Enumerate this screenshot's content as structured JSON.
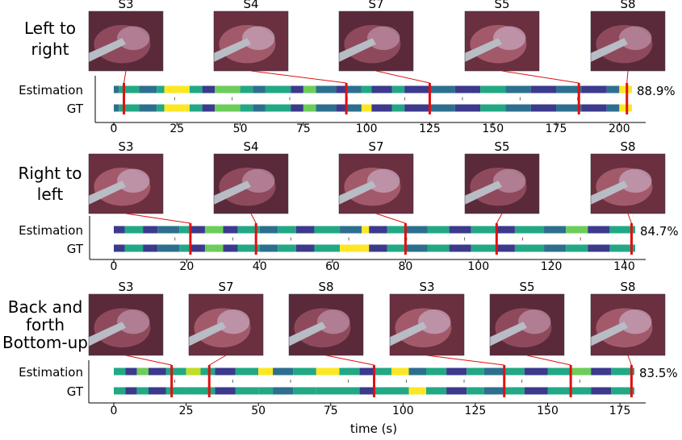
{
  "xlabel": "time (s)",
  "palette": {
    "viridis_c0": "#3b3a8c",
    "viridis_c1": "#2d6f8e",
    "viridis_c2": "#22a884",
    "viridis_c3": "#6ccd5a",
    "viridis_c4": "#bddf26",
    "viridis_c5": "#fde725",
    "marker": "#e01010"
  },
  "chart_data": [
    {
      "type": "heatmap",
      "title": "Left to right",
      "row_labels": [
        "Estimation",
        "GT"
      ],
      "accuracy": "88.9%",
      "xlim": [
        0,
        205
      ],
      "xticks": [
        0,
        25,
        50,
        75,
        100,
        125,
        150,
        175,
        200
      ],
      "frames": [
        {
          "label": "S3",
          "time": 4
        },
        {
          "label": "S4",
          "time": 92
        },
        {
          "label": "S7",
          "time": 125
        },
        {
          "label": "S5",
          "time": 184
        },
        {
          "label": "S8",
          "time": 203
        }
      ],
      "bands": {
        "Estimation": [
          [
            0,
            2,
            "1"
          ],
          [
            2,
            10,
            "2"
          ],
          [
            10,
            17,
            "1"
          ],
          [
            17,
            20,
            "2"
          ],
          [
            20,
            30,
            "5"
          ],
          [
            30,
            35,
            "2"
          ],
          [
            35,
            40,
            "0"
          ],
          [
            40,
            50,
            "3"
          ],
          [
            50,
            55,
            "2"
          ],
          [
            55,
            60,
            "1"
          ],
          [
            60,
            70,
            "2"
          ],
          [
            70,
            75,
            "0"
          ],
          [
            75,
            80,
            "3"
          ],
          [
            80,
            88,
            "1"
          ],
          [
            88,
            92,
            "0"
          ],
          [
            92,
            98,
            "1"
          ],
          [
            98,
            102,
            "2"
          ],
          [
            102,
            110,
            "0"
          ],
          [
            110,
            115,
            "2"
          ],
          [
            115,
            125,
            "0"
          ],
          [
            125,
            135,
            "1"
          ],
          [
            135,
            145,
            "0"
          ],
          [
            145,
            155,
            "2"
          ],
          [
            155,
            165,
            "1"
          ],
          [
            165,
            175,
            "0"
          ],
          [
            175,
            185,
            "1"
          ],
          [
            185,
            195,
            "0"
          ],
          [
            195,
            200,
            "1"
          ],
          [
            200,
            203,
            "5"
          ],
          [
            203,
            205,
            "5"
          ]
        ],
        "GT": [
          [
            0,
            2,
            "1"
          ],
          [
            2,
            10,
            "2"
          ],
          [
            10,
            17,
            "1"
          ],
          [
            17,
            20,
            "2"
          ],
          [
            20,
            30,
            "5"
          ],
          [
            30,
            35,
            "2"
          ],
          [
            35,
            40,
            "0"
          ],
          [
            40,
            50,
            "3"
          ],
          [
            50,
            55,
            "2"
          ],
          [
            55,
            60,
            "1"
          ],
          [
            60,
            70,
            "2"
          ],
          [
            70,
            75,
            "0"
          ],
          [
            75,
            80,
            "3"
          ],
          [
            80,
            88,
            "1"
          ],
          [
            88,
            92,
            "0"
          ],
          [
            92,
            98,
            "1"
          ],
          [
            98,
            102,
            "5"
          ],
          [
            102,
            110,
            "0"
          ],
          [
            110,
            115,
            "2"
          ],
          [
            115,
            125,
            "0"
          ],
          [
            125,
            135,
            "1"
          ],
          [
            135,
            145,
            "0"
          ],
          [
            145,
            155,
            "2"
          ],
          [
            155,
            165,
            "1"
          ],
          [
            165,
            175,
            "0"
          ],
          [
            175,
            185,
            "1"
          ],
          [
            185,
            195,
            "0"
          ],
          [
            195,
            200,
            "1"
          ],
          [
            200,
            203,
            "5"
          ],
          [
            203,
            205,
            "5"
          ]
        ]
      }
    },
    {
      "type": "heatmap",
      "title": "Right to left",
      "row_labels": [
        "Estimation",
        "GT"
      ],
      "accuracy": "84.7%",
      "xlim": [
        0,
        143
      ],
      "xticks": [
        0,
        20,
        40,
        60,
        80,
        100,
        120,
        140
      ],
      "frames": [
        {
          "label": "S3",
          "time": 21
        },
        {
          "label": "S4",
          "time": 39
        },
        {
          "label": "S7",
          "time": 80
        },
        {
          "label": "S5",
          "time": 105
        },
        {
          "label": "S8",
          "time": 142
        }
      ],
      "bands": {
        "Estimation": [
          [
            0,
            3,
            "0"
          ],
          [
            3,
            8,
            "2"
          ],
          [
            8,
            12,
            "0"
          ],
          [
            12,
            18,
            "1"
          ],
          [
            18,
            21,
            "2"
          ],
          [
            21,
            25,
            "0"
          ],
          [
            25,
            30,
            "3"
          ],
          [
            30,
            34,
            "0"
          ],
          [
            34,
            40,
            "2"
          ],
          [
            40,
            45,
            "1"
          ],
          [
            45,
            50,
            "2"
          ],
          [
            50,
            55,
            "0"
          ],
          [
            55,
            62,
            "2"
          ],
          [
            62,
            68,
            "1"
          ],
          [
            68,
            70,
            "5"
          ],
          [
            70,
            75,
            "0"
          ],
          [
            75,
            80,
            "2"
          ],
          [
            80,
            86,
            "1"
          ],
          [
            86,
            92,
            "2"
          ],
          [
            92,
            98,
            "0"
          ],
          [
            98,
            105,
            "2"
          ],
          [
            105,
            110,
            "0"
          ],
          [
            110,
            118,
            "2"
          ],
          [
            118,
            124,
            "1"
          ],
          [
            124,
            130,
            "3"
          ],
          [
            130,
            136,
            "0"
          ],
          [
            136,
            143,
            "2"
          ]
        ],
        "GT": [
          [
            0,
            3,
            "0"
          ],
          [
            3,
            8,
            "2"
          ],
          [
            8,
            12,
            "0"
          ],
          [
            12,
            18,
            "1"
          ],
          [
            18,
            21,
            "2"
          ],
          [
            21,
            25,
            "0"
          ],
          [
            25,
            30,
            "3"
          ],
          [
            30,
            34,
            "0"
          ],
          [
            34,
            40,
            "2"
          ],
          [
            40,
            45,
            "1"
          ],
          [
            45,
            50,
            "2"
          ],
          [
            50,
            55,
            "0"
          ],
          [
            55,
            62,
            "2"
          ],
          [
            62,
            68,
            "5"
          ],
          [
            68,
            70,
            "5"
          ],
          [
            70,
            75,
            "0"
          ],
          [
            75,
            80,
            "2"
          ],
          [
            80,
            86,
            "1"
          ],
          [
            86,
            92,
            "2"
          ],
          [
            92,
            98,
            "0"
          ],
          [
            98,
            105,
            "2"
          ],
          [
            105,
            110,
            "0"
          ],
          [
            110,
            118,
            "2"
          ],
          [
            118,
            124,
            "1"
          ],
          [
            124,
            130,
            "2"
          ],
          [
            130,
            136,
            "0"
          ],
          [
            136,
            143,
            "2"
          ]
        ]
      }
    },
    {
      "type": "heatmap",
      "title": "Back and forth Bottom-up",
      "row_labels": [
        "Estimation",
        "GT"
      ],
      "accuracy": "83.5%",
      "xlim": [
        0,
        180
      ],
      "xticks": [
        0,
        25,
        50,
        75,
        100,
        125,
        150,
        175
      ],
      "frames": [
        {
          "label": "S3",
          "time": 20
        },
        {
          "label": "S7",
          "time": 33
        },
        {
          "label": "S8",
          "time": 90
        },
        {
          "label": "S3",
          "time": 135
        },
        {
          "label": "S5",
          "time": 158
        },
        {
          "label": "S8",
          "time": 179
        }
      ],
      "bands": {
        "Estimation": [
          [
            0,
            4,
            "2"
          ],
          [
            4,
            8,
            "0"
          ],
          [
            8,
            12,
            "3"
          ],
          [
            12,
            18,
            "0"
          ],
          [
            18,
            25,
            "2"
          ],
          [
            25,
            30,
            "4"
          ],
          [
            30,
            35,
            "2"
          ],
          [
            35,
            42,
            "0"
          ],
          [
            42,
            50,
            "2"
          ],
          [
            50,
            55,
            "5"
          ],
          [
            55,
            62,
            "1"
          ],
          [
            62,
            70,
            "2"
          ],
          [
            70,
            78,
            "5"
          ],
          [
            78,
            85,
            "2"
          ],
          [
            85,
            90,
            "0"
          ],
          [
            90,
            96,
            "2"
          ],
          [
            96,
            102,
            "5"
          ],
          [
            102,
            108,
            "1"
          ],
          [
            108,
            115,
            "2"
          ],
          [
            115,
            122,
            "0"
          ],
          [
            122,
            128,
            "2"
          ],
          [
            128,
            135,
            "1"
          ],
          [
            135,
            142,
            "2"
          ],
          [
            142,
            150,
            "0"
          ],
          [
            150,
            158,
            "2"
          ],
          [
            158,
            165,
            "3"
          ],
          [
            165,
            172,
            "0"
          ],
          [
            172,
            180,
            "2"
          ]
        ],
        "GT": [
          [
            0,
            4,
            "2"
          ],
          [
            4,
            8,
            "0"
          ],
          [
            8,
            12,
            "2"
          ],
          [
            12,
            18,
            "0"
          ],
          [
            18,
            25,
            "2"
          ],
          [
            25,
            30,
            "2"
          ],
          [
            30,
            35,
            "2"
          ],
          [
            35,
            42,
            "0"
          ],
          [
            42,
            50,
            "2"
          ],
          [
            50,
            55,
            "2"
          ],
          [
            55,
            62,
            "1"
          ],
          [
            62,
            70,
            "2"
          ],
          [
            70,
            78,
            "2"
          ],
          [
            78,
            85,
            "2"
          ],
          [
            85,
            90,
            "0"
          ],
          [
            90,
            96,
            "2"
          ],
          [
            96,
            102,
            "2"
          ],
          [
            102,
            108,
            "5"
          ],
          [
            108,
            115,
            "2"
          ],
          [
            115,
            122,
            "0"
          ],
          [
            122,
            128,
            "2"
          ],
          [
            128,
            135,
            "1"
          ],
          [
            135,
            142,
            "2"
          ],
          [
            142,
            150,
            "0"
          ],
          [
            150,
            158,
            "2"
          ],
          [
            158,
            165,
            "2"
          ],
          [
            165,
            172,
            "0"
          ],
          [
            172,
            180,
            "2"
          ]
        ]
      }
    }
  ]
}
